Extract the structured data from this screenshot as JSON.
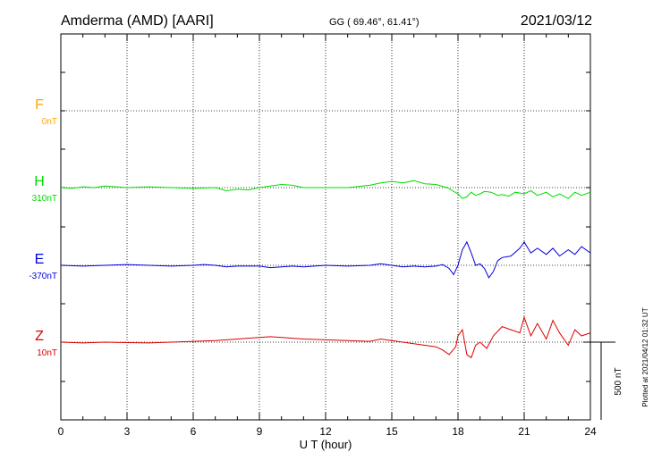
{
  "header": {
    "station": "Amderma (AMD)  [AARI]",
    "coords": "GG ( 69.46°,  61.41°)",
    "date": "2021/03/12"
  },
  "footer": {
    "plotted": "Plotted at 2021/04/12 01:32 UT"
  },
  "colors": {
    "F": "#ffa500",
    "H": "#00dd00",
    "E": "#0000dd",
    "Z": "#dd0000"
  },
  "chart_data": {
    "type": "line",
    "title": "",
    "xlabel": "U T (hour)",
    "ylabel": "",
    "xlim": [
      0,
      24
    ],
    "xticks": [
      0,
      3,
      6,
      9,
      12,
      15,
      18,
      21,
      24
    ],
    "grid": true,
    "scale_bar": {
      "label": "500 nT",
      "value_nT": 500
    },
    "series": [
      {
        "name": "F",
        "baseline": "0nT",
        "values": []
      },
      {
        "name": "H",
        "baseline": "310nT",
        "x": [
          0,
          0.5,
          1,
          1.5,
          2,
          2.5,
          3,
          4,
          5,
          6,
          7,
          7.5,
          8,
          8.5,
          9,
          9.5,
          10,
          10.5,
          11,
          12,
          13,
          14,
          14.5,
          15,
          15.5,
          16,
          16.5,
          17,
          17.5,
          18,
          18.2,
          18.4,
          18.6,
          18.8,
          19,
          19.2,
          19.5,
          19.8,
          20,
          20.3,
          20.6,
          21,
          21.3,
          21.6,
          22,
          22.3,
          22.6,
          23,
          23.3,
          23.6,
          24
        ],
        "values": [
          0,
          -5,
          5,
          0,
          10,
          5,
          0,
          5,
          0,
          -5,
          0,
          -20,
          -10,
          -15,
          0,
          10,
          20,
          15,
          0,
          0,
          0,
          15,
          30,
          40,
          30,
          45,
          25,
          20,
          0,
          -40,
          -70,
          -60,
          -30,
          -50,
          -40,
          -25,
          -30,
          -50,
          -45,
          -55,
          -30,
          -40,
          -20,
          -50,
          -30,
          -60,
          -40,
          -70,
          -30,
          -50,
          -30
        ]
      },
      {
        "name": "E",
        "baseline": "-370nT",
        "x": [
          0,
          1,
          2,
          3,
          4,
          5,
          6,
          6.5,
          7,
          7.5,
          8,
          8.5,
          9,
          9.5,
          10,
          10.5,
          11,
          12,
          13,
          14,
          14.5,
          15,
          15.5,
          16,
          16.5,
          17,
          17.3,
          17.6,
          17.8,
          18,
          18.2,
          18.4,
          18.6,
          18.8,
          19,
          19.2,
          19.4,
          19.6,
          19.8,
          20,
          20.4,
          20.8,
          21,
          21.3,
          21.6,
          22,
          22.3,
          22.6,
          23,
          23.3,
          23.6,
          24
        ],
        "values": [
          0,
          -5,
          0,
          5,
          0,
          -5,
          0,
          5,
          0,
          -10,
          -5,
          -5,
          -5,
          -15,
          -10,
          -5,
          -10,
          0,
          -5,
          0,
          10,
          0,
          -10,
          -5,
          -10,
          -5,
          5,
          -20,
          -60,
          0,
          100,
          150,
          80,
          0,
          10,
          -20,
          -80,
          -40,
          30,
          50,
          60,
          110,
          150,
          80,
          110,
          70,
          110,
          60,
          100,
          70,
          120,
          80
        ]
      },
      {
        "name": "Z",
        "baseline": "10nT",
        "x": [
          0,
          1,
          2,
          3,
          4,
          5,
          6,
          7,
          7.5,
          8,
          8.5,
          9,
          9.5,
          10,
          10.5,
          11,
          12,
          13,
          14,
          14.5,
          15,
          15.5,
          16,
          16.5,
          17,
          17.3,
          17.6,
          17.9,
          18,
          18.2,
          18.4,
          18.6,
          18.8,
          19,
          19.3,
          19.6,
          20,
          20.4,
          20.8,
          21,
          21.3,
          21.6,
          22,
          22.3,
          22.6,
          23,
          23.3,
          23.6,
          24
        ],
        "values": [
          0,
          -5,
          0,
          -3,
          -5,
          0,
          5,
          10,
          15,
          20,
          25,
          30,
          35,
          30,
          25,
          20,
          15,
          10,
          5,
          20,
          10,
          0,
          -10,
          -20,
          -30,
          -50,
          -80,
          -30,
          40,
          80,
          -80,
          -100,
          -20,
          0,
          -40,
          40,
          100,
          80,
          60,
          160,
          40,
          120,
          20,
          140,
          60,
          -20,
          80,
          40,
          60
        ]
      }
    ]
  }
}
